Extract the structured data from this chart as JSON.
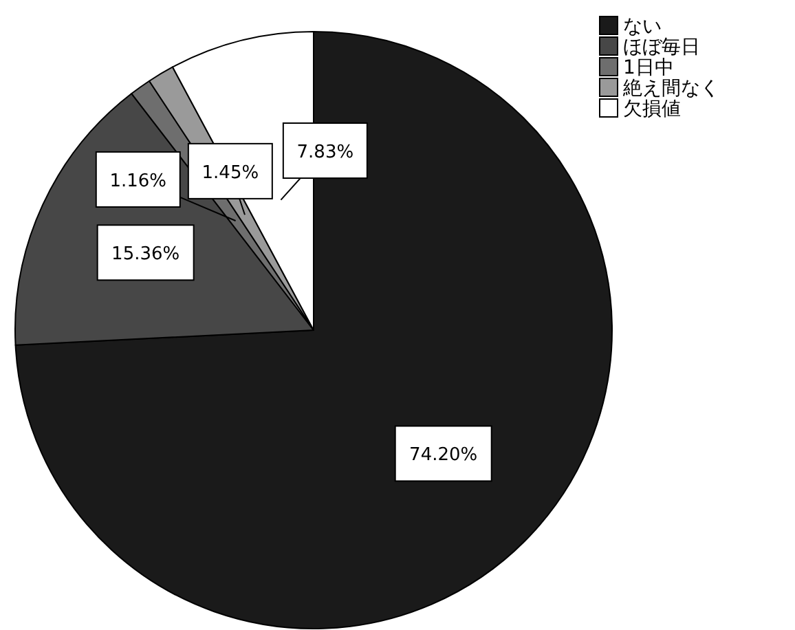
{
  "chart_data": {
    "type": "pie",
    "categories": [
      "ない",
      "ほぼ毎日",
      "1日中",
      "絶え間なく",
      "欠損値"
    ],
    "values": [
      74.2,
      15.36,
      1.16,
      1.45,
      7.83
    ],
    "colors": [
      "#1a1a1a",
      "#474747",
      "#6e6e6e",
      "#9a9a9a",
      "#ffffff"
    ],
    "value_labels": [
      "74.20%",
      "15.36%",
      "1.16%",
      "1.45%",
      "7.83%"
    ],
    "legend": "top right"
  }
}
